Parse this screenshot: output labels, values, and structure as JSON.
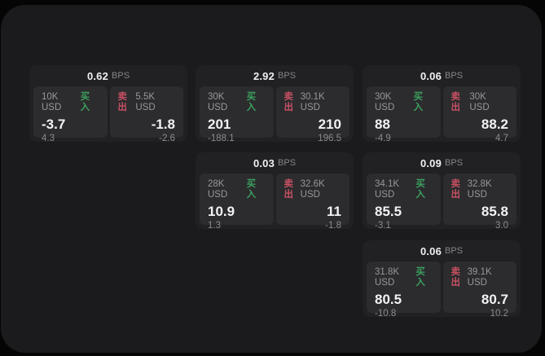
{
  "labels": {
    "unit": "BPS",
    "buy": "买入",
    "sell": "卖出"
  },
  "colors": {
    "background": "#050505",
    "window": "#1b1b1d",
    "card": "#212124",
    "panel": "#2c2c2e",
    "buy_accent": "#3ca05f",
    "sell_accent": "#c85064"
  },
  "cards": [
    {
      "bps": "0.62",
      "col": 0,
      "row": 0,
      "buy": {
        "amount": "10K USD",
        "value": "-3.7",
        "sub": "4.3"
      },
      "sell": {
        "amount": "5.5K USD",
        "value": "-1.8",
        "sub": "-2.6"
      }
    },
    {
      "bps": "2.92",
      "col": 1,
      "row": 0,
      "buy": {
        "amount": "30K USD",
        "value": "201",
        "sub": "-188.1"
      },
      "sell": {
        "amount": "30.1K USD",
        "value": "210",
        "sub": "196.5"
      }
    },
    {
      "bps": "0.06",
      "col": 2,
      "row": 0,
      "buy": {
        "amount": "30K USD",
        "value": "88",
        "sub": "-4.9"
      },
      "sell": {
        "amount": "30K USD",
        "value": "88.2",
        "sub": "4.7"
      }
    },
    {
      "bps": "0.03",
      "col": 1,
      "row": 1,
      "buy": {
        "amount": "28K USD",
        "value": "10.9",
        "sub": "1.3"
      },
      "sell": {
        "amount": "32.6K USD",
        "value": "11",
        "sub": "-1.8"
      }
    },
    {
      "bps": "0.09",
      "col": 2,
      "row": 1,
      "buy": {
        "amount": "34.1K USD",
        "value": "85.5",
        "sub": "-3.1"
      },
      "sell": {
        "amount": "32.8K USD",
        "value": "85.8",
        "sub": "3.0"
      }
    },
    {
      "bps": "0.06",
      "col": 2,
      "row": 2,
      "buy": {
        "amount": "31.8K USD",
        "value": "80.5",
        "sub": "-10.8"
      },
      "sell": {
        "amount": "39.1K USD",
        "value": "80.7",
        "sub": "10.2"
      }
    }
  ]
}
